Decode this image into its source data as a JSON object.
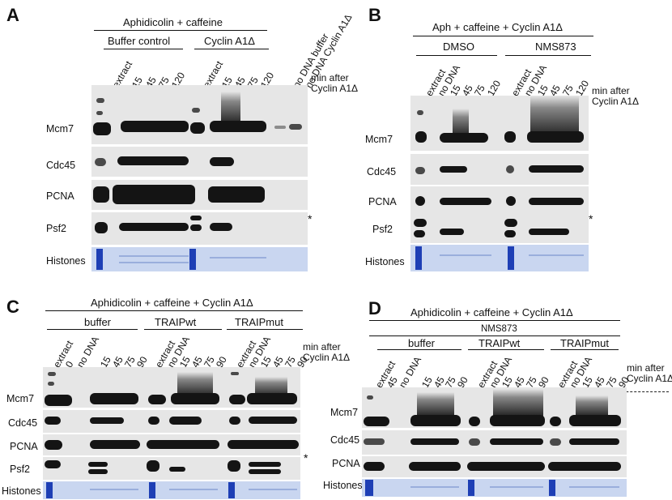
{
  "panels": {
    "A": {
      "label": "A",
      "title": "Aphidicolin + caffeine",
      "groups": [
        "Buffer control",
        "Cyclin A1Δ"
      ],
      "lanes_buffer": [
        "extract",
        "15",
        "45",
        "75",
        "120"
      ],
      "lanes_cyclin": [
        "extract",
        "15",
        "45",
        "75",
        "120"
      ],
      "lanes_nodna": [
        "no DNA buffer",
        "no DNA Cyclin A1Δ"
      ],
      "time_note_1": "min after",
      "time_note_2": "Cyclin A1Δ",
      "rows": [
        "Mcm7",
        "Cdc45",
        "PCNA",
        "Psf2",
        "Histones"
      ],
      "asterisk": "*"
    },
    "B": {
      "label": "B",
      "title": "Aph + caffeine + Cyclin A1Δ",
      "groups": [
        "DMSO",
        "NMS873"
      ],
      "lanes_dmso": [
        "extract",
        "no DNA",
        "15",
        "45",
        "75",
        "120"
      ],
      "lanes_nms": [
        "extract",
        "no DNA",
        "15",
        "45",
        "75",
        "120"
      ],
      "time_note_1": "min after",
      "time_note_2": "Cyclin A1Δ",
      "rows": [
        "Mcm7",
        "Cdc45",
        "PCNA",
        "Psf2",
        "Histones"
      ],
      "asterisk": "*"
    },
    "C": {
      "label": "C",
      "title": "Aphidicolin + caffeine + Cyclin A1Δ",
      "groups": [
        "buffer",
        "TRAIPwt",
        "TRAIPmut"
      ],
      "lanes_buffer": [
        "extract",
        "0",
        "no DNA",
        "15",
        "45",
        "75",
        "90"
      ],
      "lanes_wt": [
        "extract",
        "no DNA",
        "15",
        "45",
        "75",
        "90"
      ],
      "lanes_mut": [
        "extract",
        "no DNA",
        "15",
        "45",
        "75",
        "90"
      ],
      "time_note_1": "min after",
      "time_note_2": "Cyclin A1Δ",
      "rows": [
        "Mcm7",
        "Cdc45",
        "PCNA",
        "Psf2",
        "Histones"
      ],
      "asterisk": "*"
    },
    "D": {
      "label": "D",
      "title": "Aphidicolin + caffeine + Cyclin A1Δ",
      "subtitle": "NMS873",
      "groups": [
        "buffer",
        "TRAIPwt",
        "TRAIPmut"
      ],
      "lanes_buffer": [
        "extract",
        "45",
        "no DNA",
        "15",
        "45",
        "75",
        "90"
      ],
      "lanes_wt": [
        "extract",
        "no DNA",
        "15",
        "45",
        "75",
        "90"
      ],
      "lanes_mut": [
        "extract",
        "no DNA",
        "15",
        "45",
        "75",
        "90"
      ],
      "time_note_1": "min after",
      "time_note_2": "Cyclin A1Δ",
      "rows": [
        "Mcm7",
        "Cdc45",
        "PCNA",
        "Histones"
      ]
    }
  }
}
